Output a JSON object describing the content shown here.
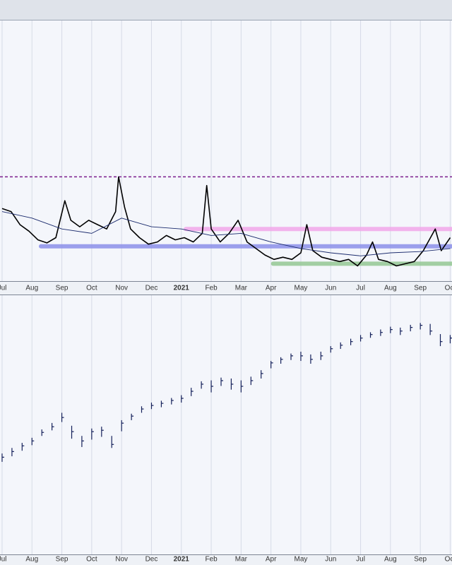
{
  "chart_data": [
    {
      "type": "line",
      "xlim": [
        -0.07,
        15.06
      ],
      "ylim": [
        15,
        75
      ],
      "xticks": [
        {
          "value": 0,
          "label": "Jul"
        },
        {
          "value": 1,
          "label": "Aug"
        },
        {
          "value": 2,
          "label": "Sep"
        },
        {
          "value": 3,
          "label": "Oct"
        },
        {
          "value": 4,
          "label": "Nov"
        },
        {
          "value": 5,
          "label": "Dec"
        },
        {
          "value": 6,
          "label": "2021",
          "bold": true
        },
        {
          "value": 7,
          "label": "Feb"
        },
        {
          "value": 8,
          "label": "Mar"
        },
        {
          "value": 9,
          "label": "Apr"
        },
        {
          "value": 10,
          "label": "May"
        },
        {
          "value": 11,
          "label": "Jun"
        },
        {
          "value": 12,
          "label": "Jul"
        },
        {
          "value": 13,
          "label": "Aug"
        },
        {
          "value": 14,
          "label": "Sep"
        },
        {
          "value": 15,
          "label": "Oct"
        }
      ],
      "grid": true,
      "hlines": [
        {
          "value": 39,
          "start": -0.07,
          "color": "#7b1c8c",
          "style": "dashed"
        },
        {
          "value": 27,
          "start": 6.08,
          "color": "#f2a8ea",
          "style": "band"
        },
        {
          "value": 23,
          "start": 1.23,
          "color": "#8c90ea",
          "style": "band"
        },
        {
          "value": 19,
          "start": 9.0,
          "color": "#94c894",
          "style": "band"
        }
      ],
      "series": [
        {
          "color": "#000000",
          "width": 1.6,
          "x": [
            0,
            0.3,
            0.6,
            0.9,
            1.2,
            1.5,
            1.8,
            2.1,
            2.3,
            2.6,
            2.9,
            3.2,
            3.5,
            3.8,
            3.9,
            4.1,
            4.3,
            4.6,
            4.9,
            5.2,
            5.5,
            5.8,
            6.1,
            6.4,
            6.7,
            6.85,
            7.0,
            7.3,
            7.6,
            7.9,
            8.2,
            8.5,
            8.8,
            9.1,
            9.4,
            9.7,
            10.0,
            10.2,
            10.4,
            10.7,
            11.0,
            11.3,
            11.6,
            11.9,
            12.2,
            12.4,
            12.6,
            12.9,
            13.2,
            13.5,
            13.8,
            14.1,
            14.5,
            14.7,
            15.0
          ],
          "values": [
            31.7,
            31,
            28,
            26.5,
            24.5,
            23.8,
            25,
            33.5,
            29,
            27.5,
            29,
            28,
            27,
            31,
            39,
            32,
            27,
            25,
            23.5,
            24,
            25.5,
            24.5,
            25,
            24,
            26,
            37,
            27,
            24,
            26,
            29,
            24,
            22.5,
            21,
            20,
            20.5,
            20,
            21.5,
            28,
            22,
            20.5,
            20,
            19.5,
            20,
            18.5,
            21,
            24,
            20,
            19.5,
            18.5,
            19,
            19.5,
            22,
            27,
            22,
            25
          ]
        },
        {
          "color": "#1a2a6c",
          "width": 0.9,
          "x": [
            0,
            1,
            2,
            3,
            4,
            5,
            6,
            7,
            8,
            9,
            10,
            11,
            12,
            13,
            14,
            15
          ],
          "values": [
            31,
            29.5,
            27,
            26,
            29.5,
            27.5,
            27,
            25.5,
            26,
            24,
            22.5,
            21.5,
            20.8,
            21.5,
            21.8,
            22.5
          ]
        }
      ]
    },
    {
      "type": "ohlc",
      "xlim": [
        -0.07,
        15.06
      ],
      "ylim": [
        2050,
        4850
      ],
      "xticks": [
        {
          "value": 0,
          "label": "Jul"
        },
        {
          "value": 1,
          "label": "Aug"
        },
        {
          "value": 2,
          "label": "Sep"
        },
        {
          "value": 3,
          "label": "Oct"
        },
        {
          "value": 4,
          "label": "Nov"
        },
        {
          "value": 5,
          "label": "Dec"
        },
        {
          "value": 6,
          "label": "2021",
          "bold": true
        },
        {
          "value": 7,
          "label": "Feb"
        },
        {
          "value": 8,
          "label": "Mar"
        },
        {
          "value": 9,
          "label": "Apr"
        },
        {
          "value": 10,
          "label": "May"
        },
        {
          "value": 11,
          "label": "Jun"
        },
        {
          "value": 12,
          "label": "Jul"
        },
        {
          "value": 13,
          "label": "Aug"
        },
        {
          "value": 14,
          "label": "Sep"
        },
        {
          "value": 15,
          "label": "Oct"
        }
      ],
      "grid": true,
      "color": "#14205a",
      "x": [
        0,
        0.33,
        0.67,
        1,
        1.33,
        1.67,
        2,
        2.33,
        2.67,
        3,
        3.33,
        3.67,
        4,
        4.33,
        4.67,
        5,
        5.33,
        5.67,
        6,
        6.33,
        6.67,
        7,
        7.33,
        7.67,
        8,
        8.33,
        8.67,
        9,
        9.33,
        9.67,
        10,
        10.33,
        10.67,
        11,
        11.33,
        11.67,
        12,
        12.33,
        12.67,
        13,
        13.33,
        13.67,
        14,
        14.33,
        14.67,
        15
      ],
      "high": [
        3140,
        3200,
        3255,
        3310,
        3400,
        3470,
        3580,
        3440,
        3330,
        3410,
        3430,
        3330,
        3500,
        3570,
        3650,
        3690,
        3710,
        3740,
        3770,
        3850,
        3920,
        3930,
        3960,
        3950,
        3930,
        3970,
        4040,
        4140,
        4180,
        4220,
        4240,
        4210,
        4240,
        4300,
        4340,
        4380,
        4420,
        4450,
        4480,
        4510,
        4500,
        4530,
        4550,
        4540,
        4430,
        4420
      ],
      "low": [
        3050,
        3110,
        3170,
        3230,
        3330,
        3390,
        3480,
        3300,
        3210,
        3290,
        3320,
        3200,
        3380,
        3500,
        3580,
        3620,
        3640,
        3670,
        3690,
        3760,
        3840,
        3800,
        3870,
        3830,
        3800,
        3880,
        3950,
        4060,
        4110,
        4150,
        4140,
        4110,
        4150,
        4230,
        4270,
        4310,
        4350,
        4390,
        4410,
        4440,
        4420,
        4460,
        4480,
        4420,
        4300,
        4330
      ],
      "close": [
        3100,
        3161,
        3223,
        3276,
        3368,
        3429,
        3529,
        3376,
        3276,
        3376,
        3391,
        3238,
        3468,
        3544,
        3621,
        3659,
        3682,
        3713,
        3736,
        3812,
        3889,
        3866,
        3927,
        3889,
        3866,
        3927,
        4004,
        4119,
        4157,
        4195,
        4195,
        4157,
        4195,
        4272,
        4310,
        4349,
        4387,
        4425,
        4448,
        4479,
        4463,
        4502,
        4525,
        4463,
        4349,
        4387
      ]
    }
  ]
}
